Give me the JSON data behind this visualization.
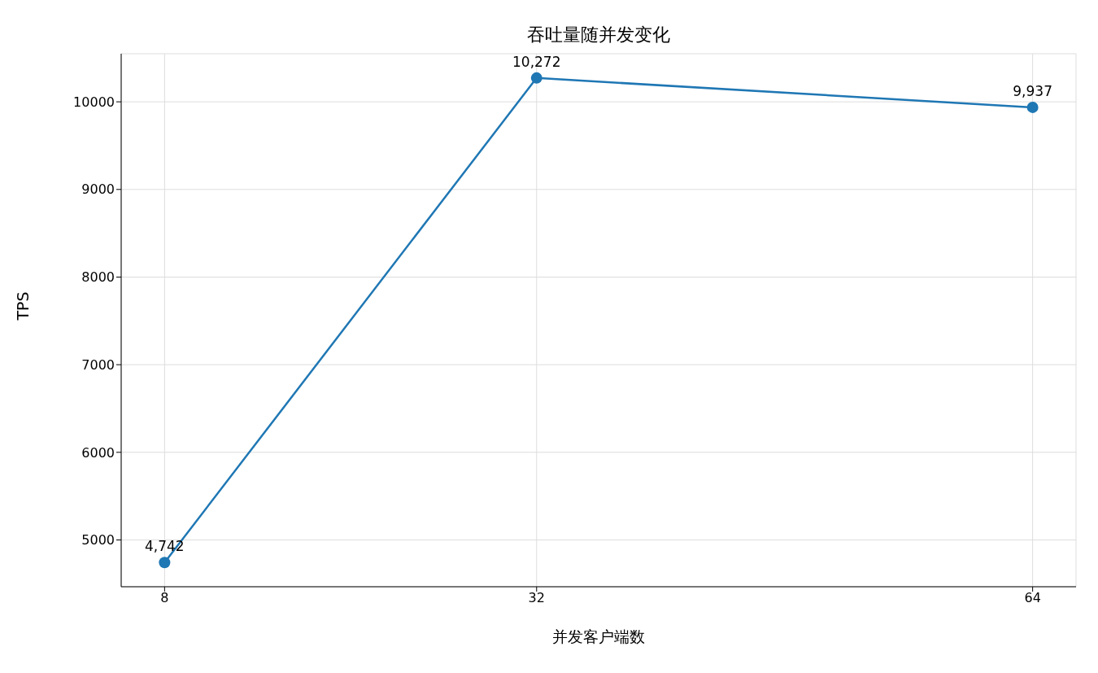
{
  "chart_data": {
    "type": "line",
    "title": "吞吐量随并发变化",
    "xlabel": "并发客户端数",
    "ylabel": "TPS",
    "x": [
      8,
      32,
      64
    ],
    "series": [
      {
        "color": "#1f77b4",
        "values": [
          4742,
          10272,
          9937
        ],
        "value_labels": [
          "4,742",
          "10,272",
          "9,937"
        ]
      }
    ],
    "xlim": [
      5.2,
      66.8
    ],
    "xticks": [
      8,
      32,
      64
    ],
    "ylim": [
      4466,
      10549
    ],
    "yticks": [
      5000,
      6000,
      7000,
      8000,
      9000,
      10000
    ],
    "grid": true,
    "marker": "circle",
    "line_style": "solid",
    "legend": false
  }
}
